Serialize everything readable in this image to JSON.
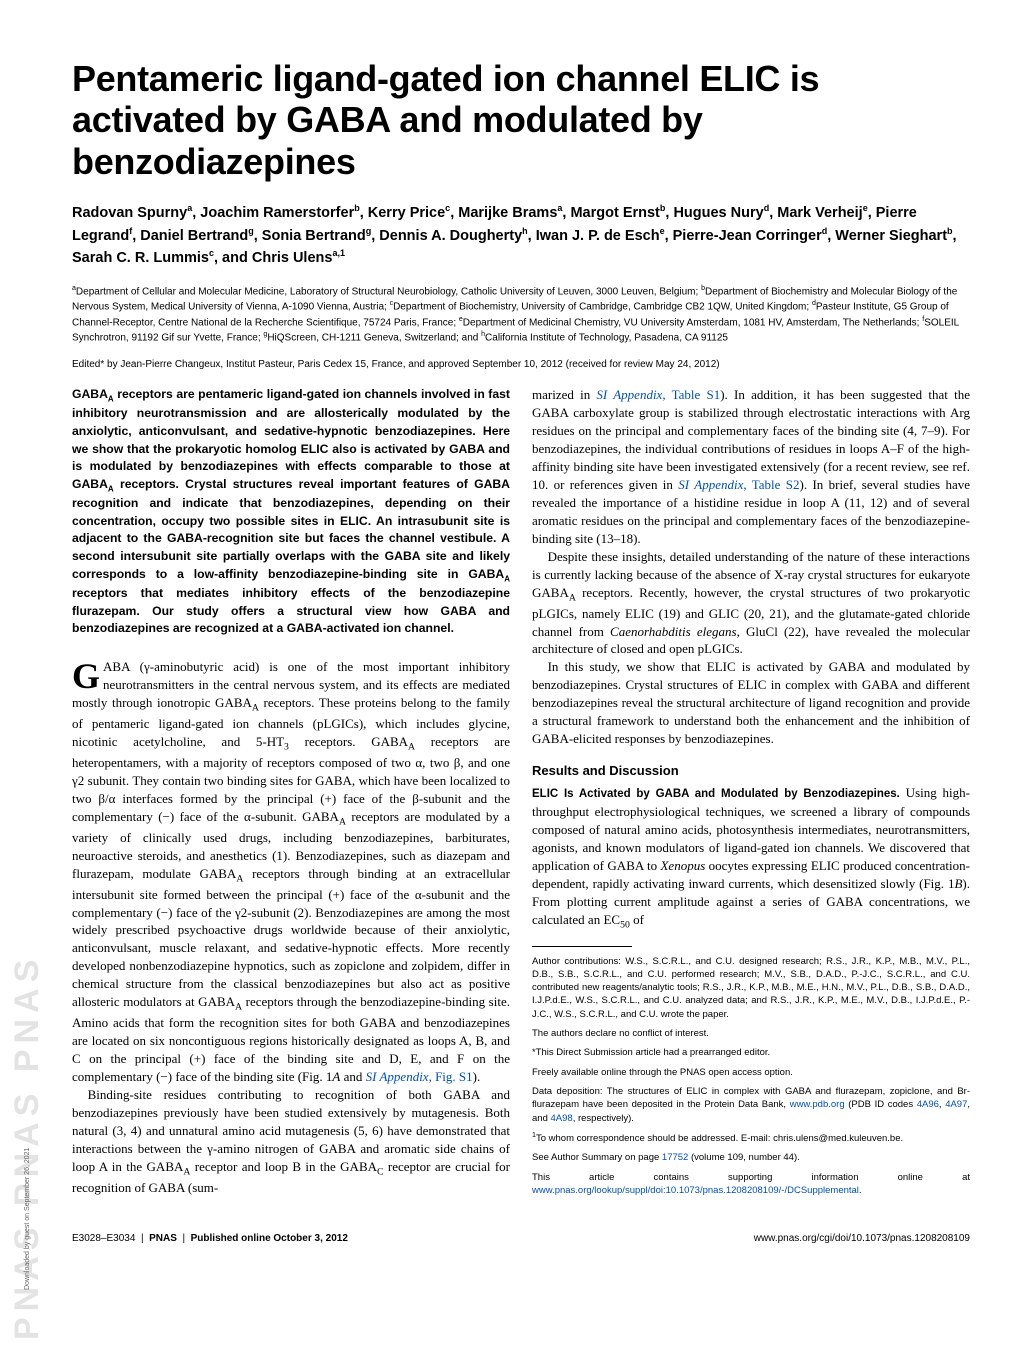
{
  "sidebar": {
    "brand": "PNAS  PNAS  PNAS",
    "download_note": "Downloaded by guest on September 26, 2021"
  },
  "title": "Pentameric ligand-gated ion channel ELIC is activated by GABA and modulated by benzodiazepines",
  "authors_html": "Radovan Spurny<sup>a</sup>, Joachim Ramerstorfer<sup>b</sup>, Kerry Price<sup>c</sup>, Marijke Brams<sup>a</sup>, Margot Ernst<sup>b</sup>, Hugues Nury<sup>d</sup>, Mark Verheij<sup>e</sup>, Pierre Legrand<sup>f</sup>, Daniel Bertrand<sup>g</sup>, Sonia Bertrand<sup>g</sup>, Dennis A. Dougherty<sup>h</sup>, Iwan J. P. de Esch<sup>e</sup>, Pierre-Jean Corringer<sup>d</sup>, Werner Sieghart<sup>b</sup>, Sarah C. R. Lummis<sup>c</sup>, and Chris Ulens<sup>a,1</sup>",
  "affiliations_html": "<sup>a</sup>Department of Cellular and Molecular Medicine, Laboratory of Structural Neurobiology, Catholic University of Leuven, 3000 Leuven, Belgium; <sup>b</sup>Department of Biochemistry and Molecular Biology of the Nervous System, Medical University of Vienna, A-1090 Vienna, Austria; <sup>c</sup>Department of Biochemistry, University of Cambridge, Cambridge CB2 1QW, United Kingdom; <sup>d</sup>Pasteur Institute, G5 Group of Channel-Receptor, Centre National de la Recherche Scientifique, 75724 Paris, France; <sup>e</sup>Department of Medicinal Chemistry, VU University Amsterdam, 1081 HV, Amsterdam, The Netherlands; <sup>f</sup>SOLEIL Synchrotron, 91192 Gif sur Yvette, France; <sup>g</sup>HiQScreen, CH-1211 Geneva, Switzerland; and <sup>h</sup>California Institute of Technology, Pasadena, CA 91125",
  "edited": "Edited* by Jean-Pierre Changeux, Institut Pasteur, Paris Cedex 15, France, and approved September 10, 2012 (received for review May 24, 2012)",
  "abstract_html": "GABA<sub>A</sub> receptors are pentameric ligand-gated ion channels involved in fast inhibitory neurotransmission and are allosterically modulated by the anxiolytic, anticonvulsant, and sedative-hypnotic benzodiazepines. Here we show that the prokaryotic homolog ELIC also is activated by GABA and is modulated by benzodiazepines with effects comparable to those at GABA<sub>A</sub> receptors. Crystal structures reveal important features of GABA recognition and indicate that benzodiazepines, depending on their concentration, occupy two possible sites in ELIC. An intrasubunit site is adjacent to the GABA-recognition site but faces the channel vestibule. A second intersubunit site partially overlaps with the GABA site and likely corresponds to a low-affinity benzodiazepine-binding site in GABA<sub>A</sub> receptors that mediates inhibitory effects of the benzodiazepine flurazepam. Our study offers a structural view how GABA and benzodiazepines are recognized at a GABA-activated ion channel.",
  "left_body_html": "<p><span class=\"dropcap\">G</span>ABA (γ-aminobutyric acid) is one of the most important inhibitory neurotransmitters in the central nervous system, and its effects are mediated mostly through ionotropic GABA<sub>A</sub> receptors. These proteins belong to the family of pentameric ligand-gated ion channels (pLGICs), which includes glycine, nicotinic acetylcholine, and 5-HT<sub>3</sub> receptors. GABA<sub>A</sub> receptors are heteropentamers, with a majority of receptors composed of two α, two β, and one γ2 subunit. They contain two binding sites for GABA, which have been localized to two β/α interfaces formed by the principal (+) face of the β-subunit and the complementary (−) face of the α-subunit. GABA<sub>A</sub> receptors are modulated by a variety of clinically used drugs, including benzodiazepines, barbiturates, neuroactive steroids, and anesthetics (1). Benzodiazepines, such as diazepam and flurazepam, modulate GABA<sub>A</sub> receptors through binding at an extracellular intersubunit site formed between the principal (+) face of the α-subunit and the complementary (−) face of the γ2-subunit (2). Benzodiazepines are among the most widely prescribed psychoactive drugs worldwide because of their anxiolytic, anticonvulsant, muscle relaxant, and sedative-hypnotic effects. More recently developed nonbenzodiazepine hypnotics, such as zopiclone and zolpidem, differ in chemical structure from the classical benzodiazepines but also act as positive allosteric modulators at GABA<sub>A</sub> receptors through the benzodiazepine-binding site. Amino acids that form the recognition sites for both GABA and benzodiazepines are located on six noncontiguous regions historically designated as loops A, B, and C on the principal (+) face of the binding site and D, E, and F on the complementary (−) face of the binding site (Fig. 1<i>A</i> and <span class=\"link\"><i>SI Appendix</i>, Fig. S1</span>).</p><p class=\"para\">Binding-site residues contributing to recognition of both GABA and benzodiazepines previously have been studied extensively by mutagenesis. Both natural (3, 4) and unnatural amino acid mutagenesis (5, 6) have demonstrated that interactions between the γ-amino nitrogen of GABA and aromatic side chains of loop A in the GABA<sub>A</sub> receptor and loop B in the GABA<sub>C</sub> receptor are crucial for recognition of GABA (sum-</p>",
  "right_body_top_html": "<p>marized in <span class=\"link\"><i>SI Appendix</i>, Table S1</span>). In addition, it has been suggested that the GABA carboxylate group is stabilized through electrostatic interactions with Arg residues on the principal and complementary faces of the binding site (4, 7–9). For benzodiazepines, the individual contributions of residues in loops A–F of the high-affinity binding site have been investigated extensively (for a recent review, see ref. 10. or references given in <span class=\"link\"><i>SI Appendix</i>, Table S2</span>). In brief, several studies have revealed the importance of a histidine residue in loop A (11, 12) and of several aromatic residues on the principal and complementary faces of the benzodiazepine-binding site (13–18).</p><p class=\"para\">Despite these insights, detailed understanding of the nature of these interactions is currently lacking because of the absence of X-ray crystal structures for eukaryote GABA<sub>A</sub> receptors. Recently, however, the crystal structures of two prokaryotic pLGICs, namely ELIC (19) and GLIC (20, 21), and the glutamate-gated chloride channel from <i>Caenorhabditis elegans</i>, GluCl (22), have revealed the molecular architecture of closed and open pLGICs.</p><p class=\"para\">In this study, we show that ELIC is activated by GABA and modulated by benzodiazepines. Crystal structures of ELIC in complex with GABA and different benzodiazepines reveal the structural architecture of ligand recognition and provide a structural framework to understand both the enhancement and the inhibition of GABA-elicited responses by benzodiazepines.</p>",
  "results_hdr": "Results and Discussion",
  "subsection_hdr": "ELIC Is Activated by GABA and Modulated by Benzodiazepines.",
  "right_body_sub_html": " Using high-throughput electrophysiological techniques, we screened a library of compounds composed of natural amino acids, photosynthesis intermediates, neurotransmitters, agonists, and known modulators of ligand-gated ion channels. We discovered that application of GABA to <i>Xenopus</i> oocytes expressing ELIC produced concentration-dependent, rapidly activating inward currents, which desensitized slowly (Fig. 1<i>B</i>). From plotting current amplitude against a series of GABA concentrations, we calculated an EC<sub>50</sub> of",
  "footnotes": {
    "contrib": "Author contributions: W.S., S.C.R.L., and C.U. designed research; R.S., J.R., K.P., M.B., M.V., P.L., D.B., S.B., S.C.R.L., and C.U. performed research; M.V., S.B., D.A.D., P.-J.C., S.C.R.L., and C.U. contributed new reagents/analytic tools; R.S., J.R., K.P., M.B., M.E., H.N., M.V., P.L., D.B., S.B., D.A.D., I.J.P.d.E., W.S., S.C.R.L., and C.U. analyzed data; and R.S., J.R., K.P., M.E., M.V., D.B., I.J.P.d.E., P.-J.C., W.S., S.C.R.L., and C.U. wrote the paper.",
    "conflict": "The authors declare no conflict of interest.",
    "editor": "*This Direct Submission article had a prearranged editor.",
    "open": "Freely available online through the PNAS open access option.",
    "deposition_html": "Data deposition: The structures of ELIC in complex with GABA and flurazepam, zopiclone, and Br-flurazepam have been deposited in the Protein Data Bank, <span class=\"link\">www.pdb.org</span> (PDB ID codes <span class=\"link\">4A96</span>, <span class=\"link\">4A97</span>, and <span class=\"link\">4A98</span>, respectively).",
    "correspond_html": "<sup>1</sup>To whom correspondence should be addressed. E-mail: chris.ulens@med.kuleuven.be.",
    "summary_html": "See Author Summary on page <span class=\"link\">17752</span> (volume 109, number 44).",
    "si_html": "This article contains supporting information online at <span class=\"link\">www.pnas.org/lookup/suppl/doi:10.1073/pnas.1208208109/-/DCSupplemental</span>."
  },
  "footer": {
    "left_html": "E3028–E3034 &nbsp;|&nbsp; <b>PNAS</b> &nbsp;|&nbsp; <b>Published online October 3, 2012</b>",
    "right": "www.pnas.org/cgi/doi/10.1073/pnas.1208208109"
  },
  "colors": {
    "link": "#0050b3",
    "sidebar_text": "#c8c8c8"
  }
}
